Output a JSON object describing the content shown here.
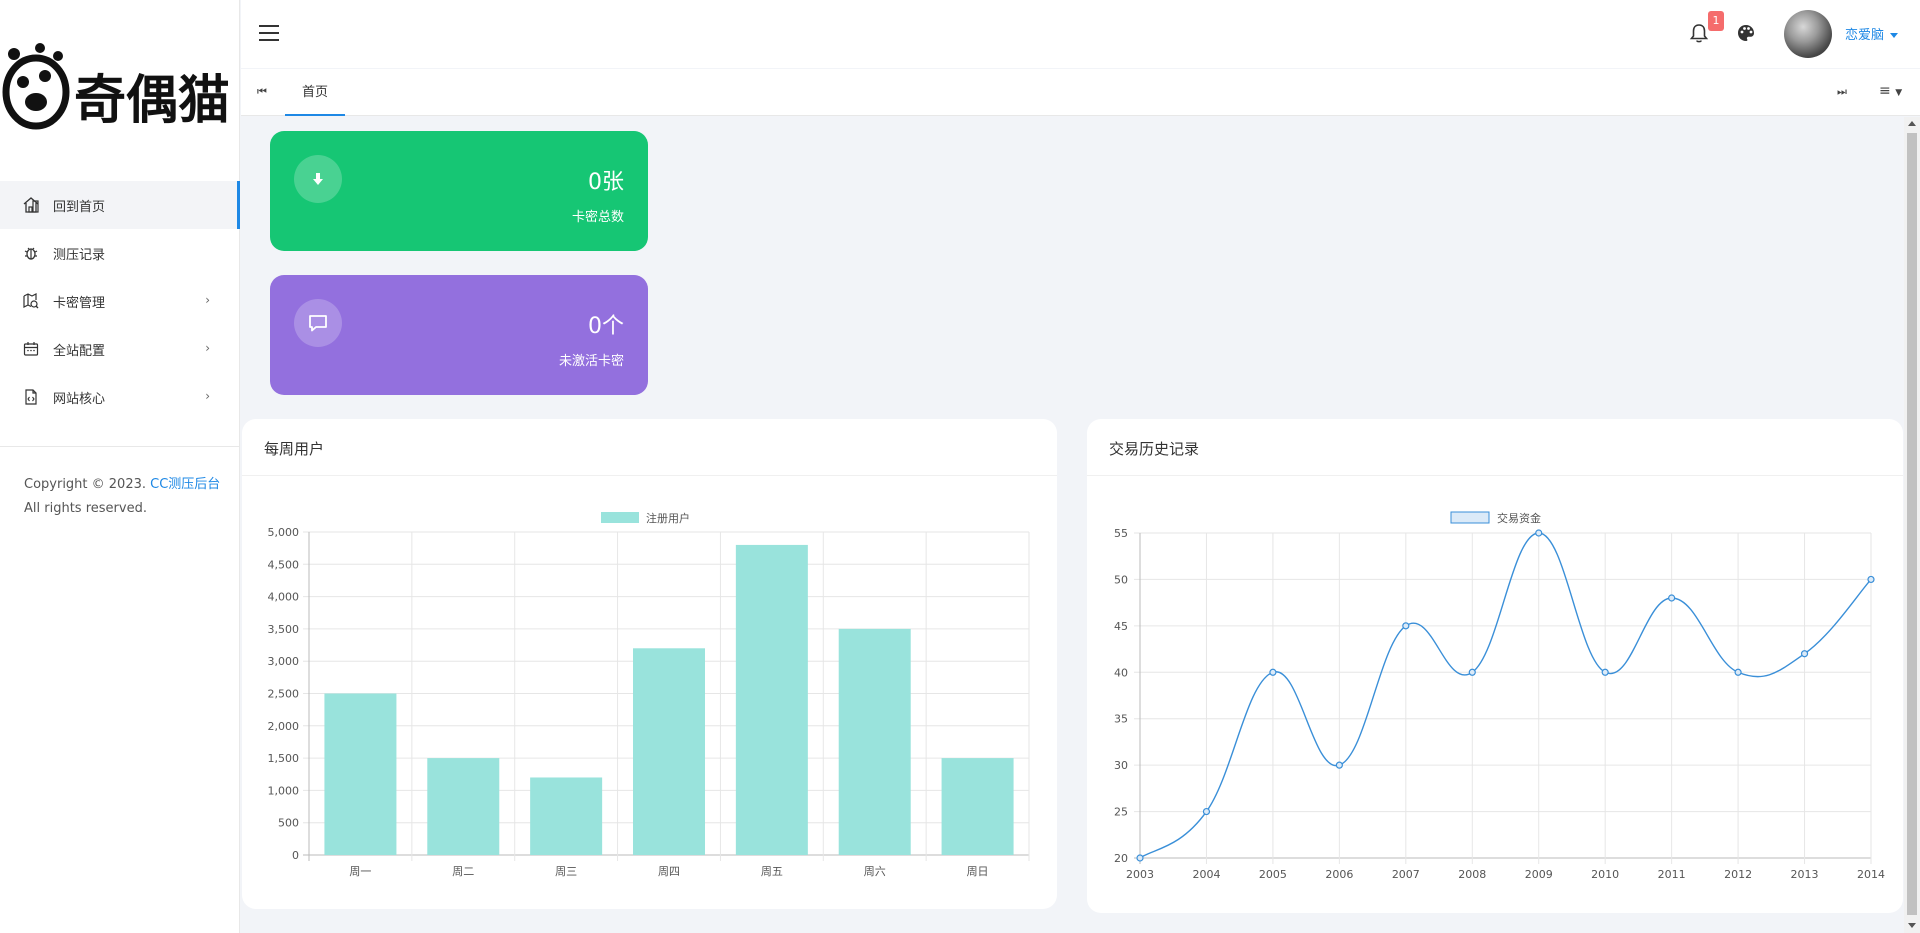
{
  "app": {
    "logo_text": "奇偶猫"
  },
  "sidebar": {
    "items": [
      {
        "label": "回到首页",
        "icon": "home-icon"
      },
      {
        "label": "测压记录",
        "icon": "bug-icon"
      },
      {
        "label": "卡密管理",
        "icon": "map-search-icon",
        "has_children": true
      },
      {
        "label": "全站配置",
        "icon": "calendar-icon",
        "has_children": true
      },
      {
        "label": "网站核心",
        "icon": "code-file-icon",
        "has_children": true
      }
    ],
    "chevron": "›",
    "copyright_prefix": "Copyright © 2023. ",
    "copyright_brand": "CC测压后台",
    "copyright_suffix": "All rights reserved."
  },
  "topbar": {
    "notification_count": "1",
    "username": "恋爱脑"
  },
  "tabs": {
    "prev": "⏮",
    "home": "首页",
    "next": "⏭",
    "menu": "≡"
  },
  "stats": [
    {
      "value": "0张",
      "label": "卡密总数",
      "color": "#16c674",
      "icon": "download-icon"
    },
    {
      "value": "0个",
      "label": "未激活卡密",
      "color": "#9370de",
      "icon": "comment-icon"
    }
  ],
  "panels": {
    "weekly_title": "每周用户",
    "history_title": "交易历史记录"
  },
  "chart_data": [
    {
      "type": "bar",
      "categories": [
        "周一",
        "周二",
        "周三",
        "周四",
        "周五",
        "周六",
        "周日"
      ],
      "series": [
        {
          "name": "注册用户",
          "values": [
            2500,
            1500,
            1200,
            3200,
            4800,
            3500,
            1500
          ],
          "color": "#99e3dc"
        }
      ],
      "ylim": [
        0,
        5000
      ],
      "yticks": [
        "0",
        "500",
        "1,000",
        "1,500",
        "2,000",
        "2,500",
        "3,000",
        "3,500",
        "4,000",
        "4,500",
        "5,000"
      ],
      "grid": true,
      "legend": "top-center"
    },
    {
      "type": "line",
      "x": [
        "2003",
        "2004",
        "2005",
        "2006",
        "2007",
        "2008",
        "2009",
        "2010",
        "2011",
        "2012",
        "2013",
        "2014"
      ],
      "series": [
        {
          "name": "交易资金",
          "values": [
            20,
            25,
            40,
            30,
            45,
            40,
            55,
            40,
            48,
            40,
            42,
            50
          ],
          "color": "#3a8fd8"
        }
      ],
      "ylim": [
        20,
        55
      ],
      "yticks": [
        "20",
        "25",
        "30",
        "35",
        "40",
        "45",
        "50",
        "55"
      ],
      "grid": true,
      "legend": "top-center"
    }
  ]
}
